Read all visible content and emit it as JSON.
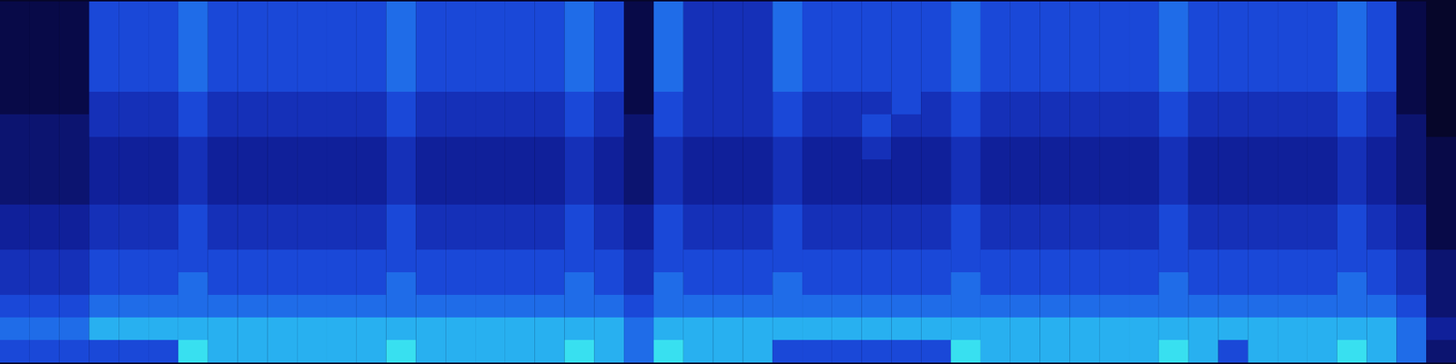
{
  "chart_data": {
    "type": "heatmap",
    "tick_labels": false,
    "zlim": [
      0,
      9
    ],
    "cells": [
      [
        1,
        1,
        1,
        5,
        5,
        5,
        6,
        5,
        5,
        5,
        5,
        5,
        5,
        6,
        5,
        5,
        5,
        5,
        5,
        6,
        5,
        1,
        6,
        4,
        4,
        4,
        6,
        5,
        5,
        5,
        5,
        5,
        6,
        5,
        5,
        5,
        5,
        5,
        5,
        6,
        5,
        5,
        5,
        5,
        5,
        6,
        5,
        1,
        0
      ],
      [
        1,
        1,
        1,
        5,
        5,
        5,
        6,
        5,
        5,
        5,
        5,
        5,
        5,
        6,
        5,
        5,
        5,
        5,
        5,
        6,
        5,
        1,
        6,
        4,
        4,
        4,
        6,
        5,
        5,
        5,
        5,
        5,
        6,
        5,
        5,
        5,
        5,
        5,
        5,
        6,
        5,
        5,
        5,
        5,
        5,
        6,
        5,
        1,
        0
      ],
      [
        1,
        1,
        1,
        5,
        5,
        5,
        6,
        5,
        5,
        5,
        5,
        5,
        5,
        6,
        5,
        5,
        5,
        5,
        5,
        6,
        5,
        1,
        6,
        4,
        4,
        4,
        6,
        5,
        5,
        5,
        5,
        5,
        6,
        5,
        5,
        5,
        5,
        5,
        5,
        6,
        5,
        5,
        5,
        5,
        5,
        6,
        5,
        1,
        0
      ],
      [
        1,
        1,
        1,
        5,
        5,
        5,
        6,
        5,
        5,
        5,
        5,
        5,
        5,
        6,
        5,
        5,
        5,
        5,
        5,
        6,
        5,
        1,
        6,
        4,
        4,
        4,
        6,
        5,
        5,
        5,
        5,
        5,
        6,
        5,
        5,
        5,
        5,
        5,
        5,
        6,
        5,
        5,
        5,
        5,
        5,
        6,
        5,
        1,
        0
      ],
      [
        1,
        1,
        1,
        4,
        4,
        4,
        5,
        4,
        4,
        4,
        4,
        4,
        4,
        5,
        4,
        4,
        4,
        4,
        4,
        5,
        4,
        1,
        5,
        4,
        4,
        4,
        5,
        4,
        4,
        4,
        5,
        4,
        5,
        4,
        4,
        4,
        4,
        4,
        4,
        5,
        4,
        4,
        4,
        4,
        4,
        5,
        4,
        1,
        0
      ],
      [
        2,
        2,
        2,
        4,
        4,
        4,
        5,
        4,
        4,
        4,
        4,
        4,
        4,
        5,
        4,
        4,
        4,
        4,
        4,
        5,
        4,
        2,
        5,
        4,
        4,
        4,
        5,
        4,
        4,
        5,
        4,
        4,
        5,
        4,
        4,
        4,
        4,
        4,
        4,
        5,
        4,
        4,
        4,
        4,
        4,
        5,
        4,
        2,
        0
      ],
      [
        2,
        2,
        2,
        3,
        3,
        3,
        4,
        3,
        3,
        3,
        3,
        3,
        3,
        4,
        3,
        3,
        3,
        3,
        3,
        4,
        3,
        2,
        4,
        3,
        3,
        3,
        4,
        3,
        3,
        4,
        3,
        3,
        4,
        3,
        3,
        3,
        3,
        3,
        3,
        4,
        3,
        3,
        3,
        3,
        3,
        4,
        3,
        2,
        1
      ],
      [
        2,
        2,
        2,
        3,
        3,
        3,
        4,
        3,
        3,
        3,
        3,
        3,
        3,
        4,
        3,
        3,
        3,
        3,
        3,
        4,
        3,
        2,
        4,
        3,
        3,
        3,
        4,
        3,
        3,
        3,
        3,
        3,
        4,
        3,
        3,
        3,
        3,
        3,
        3,
        4,
        3,
        3,
        3,
        3,
        3,
        4,
        3,
        2,
        1
      ],
      [
        2,
        2,
        2,
        3,
        3,
        3,
        4,
        3,
        3,
        3,
        3,
        3,
        3,
        4,
        3,
        3,
        3,
        3,
        3,
        4,
        3,
        2,
        4,
        3,
        3,
        3,
        4,
        3,
        3,
        3,
        3,
        3,
        4,
        3,
        3,
        3,
        3,
        3,
        3,
        4,
        3,
        3,
        3,
        3,
        3,
        4,
        3,
        2,
        1
      ],
      [
        3,
        3,
        3,
        4,
        4,
        4,
        5,
        4,
        4,
        4,
        4,
        4,
        4,
        5,
        4,
        4,
        4,
        4,
        4,
        5,
        4,
        3,
        5,
        4,
        4,
        4,
        5,
        4,
        4,
        4,
        4,
        4,
        5,
        4,
        4,
        4,
        4,
        4,
        4,
        5,
        4,
        4,
        4,
        4,
        4,
        5,
        4,
        3,
        1
      ],
      [
        3,
        3,
        3,
        4,
        4,
        4,
        5,
        4,
        4,
        4,
        4,
        4,
        4,
        5,
        4,
        4,
        4,
        4,
        4,
        5,
        4,
        3,
        5,
        4,
        4,
        4,
        5,
        4,
        4,
        4,
        4,
        4,
        5,
        4,
        4,
        4,
        4,
        4,
        4,
        5,
        4,
        4,
        4,
        4,
        4,
        5,
        4,
        3,
        1
      ],
      [
        4,
        4,
        4,
        5,
        5,
        5,
        5,
        5,
        5,
        5,
        5,
        5,
        5,
        5,
        5,
        5,
        5,
        5,
        5,
        5,
        5,
        4,
        5,
        5,
        5,
        5,
        5,
        5,
        5,
        5,
        5,
        5,
        5,
        5,
        5,
        5,
        5,
        5,
        5,
        5,
        5,
        5,
        5,
        5,
        5,
        5,
        5,
        4,
        2
      ],
      [
        4,
        4,
        4,
        5,
        5,
        5,
        6,
        5,
        5,
        5,
        5,
        5,
        5,
        6,
        5,
        5,
        5,
        5,
        5,
        6,
        5,
        4,
        6,
        5,
        5,
        5,
        6,
        5,
        5,
        5,
        5,
        5,
        6,
        5,
        5,
        5,
        5,
        5,
        5,
        6,
        5,
        5,
        5,
        5,
        5,
        6,
        5,
        4,
        2
      ],
      [
        5,
        5,
        5,
        6,
        6,
        6,
        6,
        6,
        6,
        6,
        6,
        6,
        6,
        6,
        6,
        6,
        6,
        6,
        6,
        6,
        6,
        5,
        6,
        6,
        6,
        6,
        6,
        6,
        6,
        6,
        6,
        6,
        6,
        6,
        6,
        6,
        6,
        6,
        6,
        6,
        6,
        6,
        6,
        6,
        6,
        6,
        6,
        5,
        2
      ],
      [
        6,
        6,
        6,
        7,
        7,
        7,
        7,
        7,
        7,
        7,
        7,
        7,
        7,
        7,
        7,
        7,
        7,
        7,
        7,
        7,
        7,
        6,
        7,
        7,
        7,
        7,
        7,
        7,
        7,
        7,
        7,
        7,
        7,
        7,
        7,
        7,
        7,
        7,
        7,
        7,
        7,
        7,
        7,
        7,
        7,
        7,
        7,
        6,
        3
      ],
      [
        5,
        5,
        5,
        5,
        5,
        5,
        8,
        7,
        7,
        7,
        7,
        7,
        7,
        8,
        7,
        7,
        7,
        7,
        7,
        8,
        7,
        6,
        8,
        7,
        7,
        7,
        5,
        5,
        5,
        5,
        5,
        5,
        8,
        7,
        7,
        7,
        7,
        7,
        7,
        8,
        7,
        5,
        7,
        7,
        7,
        8,
        7,
        6,
        2
      ]
    ]
  }
}
